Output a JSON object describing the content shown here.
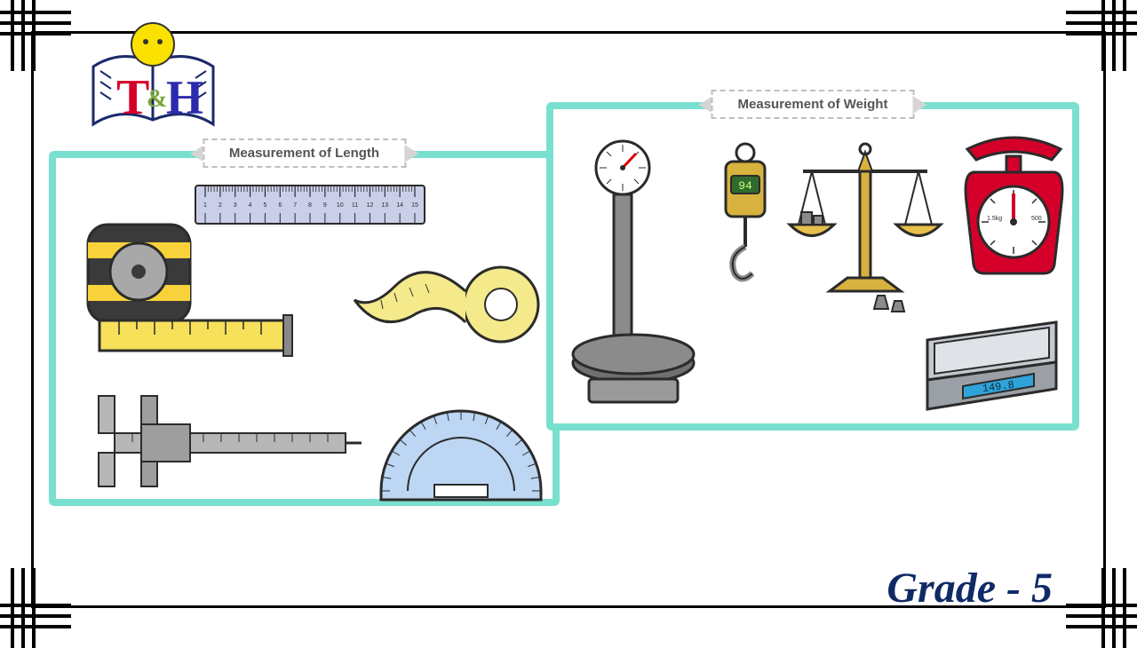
{
  "logo": {
    "letter_t": "T",
    "ampersand": "&",
    "letter_h": "H",
    "t_color": "#d4002a",
    "h_color": "#2c2aaf",
    "amp_color": "#7aa73a",
    "face_color": "#fbe100",
    "page_color": "#ffffff",
    "page_stroke": "#1b2a6b"
  },
  "panel_length": {
    "title": "Measurement of Length",
    "border_color": "#79e0cf",
    "bg_color": "#ffffff",
    "ruler": {
      "body_color": "#c9cfe8",
      "stroke": "#2b2b2b",
      "labels": [
        "1",
        "2",
        "3",
        "4",
        "5",
        "6",
        "7",
        "8",
        "9",
        "10",
        "11",
        "12",
        "13",
        "14",
        "15"
      ]
    },
    "tape_measure": {
      "case_color": "#3a3a3a",
      "accent_color": "#f7d23a",
      "tape_color": "#f7e15a",
      "stroke": "#2b2b2b"
    },
    "measuring_tape": {
      "tape_color": "#f4e98b",
      "stroke": "#2b2b2b"
    },
    "caliper": {
      "body_color": "#b7b7b7",
      "stroke": "#2b2b2b"
    },
    "protractor": {
      "body_color": "#bcd6f3",
      "stroke": "#2b2b2b"
    }
  },
  "panel_weight": {
    "title": "Measurement of Weight",
    "border_color": "#79e0cf",
    "bg_color": "#ffffff",
    "physician_scale": {
      "body_color": "#8b8b8b",
      "platform_color": "#707070",
      "dial_bg": "#ffffff",
      "needle_color": "#d60000",
      "stroke": "#2b2b2b"
    },
    "hanging_scale": {
      "body_color": "#d7b23e",
      "display_bg": "#2f6b2f",
      "display_text": "94",
      "text_color": "#c7ff7a",
      "stroke": "#2b2b2b"
    },
    "balance": {
      "frame_color": "#d7b23e",
      "pan_color": "#e7c04b",
      "weight_color": "#8b8b8b",
      "stroke": "#2b2b2b"
    },
    "kitchen_scale": {
      "body_color": "#d4002a",
      "tray_color": "#d4002a",
      "dial_bg": "#ffffff",
      "needle_color": "#d4002a",
      "labels": {
        "left": "1.5kg",
        "right": "500"
      },
      "stroke": "#2b2b2b"
    },
    "digital_scale": {
      "body_color": "#9aa0a6",
      "platform_color": "#c4c9cf",
      "display_bg": "#2fa4d9",
      "display_text": "149.8",
      "text_color": "#0b2a3a",
      "stroke": "#2b2b2b"
    }
  },
  "grade": {
    "text": "Grade - 5",
    "color": "#0f2a66"
  },
  "frame": {
    "corner_stroke": "#000000",
    "border_color": "#000000"
  }
}
